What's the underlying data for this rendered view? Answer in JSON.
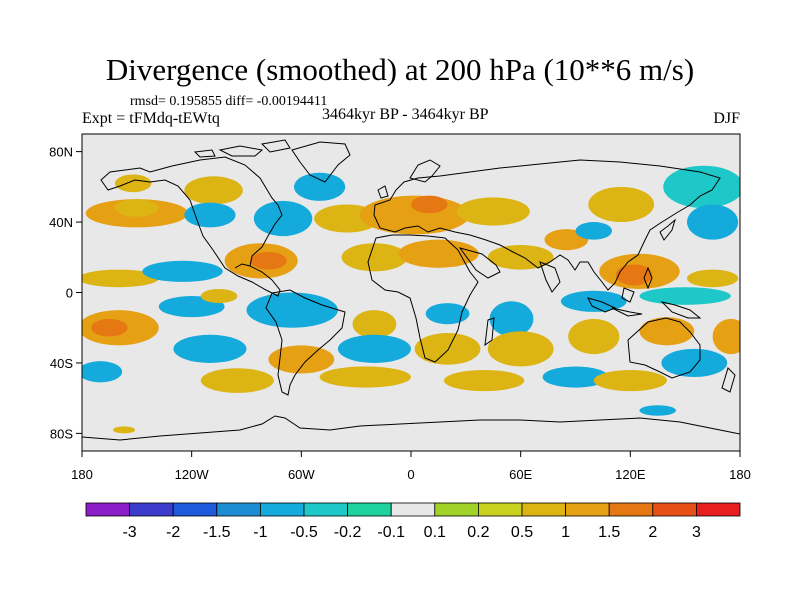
{
  "title": "Divergence (smoothed) at 200 hPa (10**6 m/s)",
  "stats": "rmsd= 0.195855 diff= -0.00194411",
  "expt": "Expt = tFMdq-tEWtq",
  "period": "3464kyr BP - 3464kyr BP",
  "season": "DJF",
  "map": {
    "lon_range": [
      -180,
      180
    ],
    "lat_range": [
      -90,
      90
    ],
    "background_color": "#e8e8e8",
    "lat_ticks": [
      {
        "value": 80,
        "label": "80N"
      },
      {
        "value": 40,
        "label": "40N"
      },
      {
        "value": 0,
        "label": "0"
      },
      {
        "value": -40,
        "label": "40S"
      },
      {
        "value": -80,
        "label": "80S"
      }
    ],
    "lon_ticks": [
      {
        "value": -180,
        "label": "180"
      },
      {
        "value": -120,
        "label": "120W"
      },
      {
        "value": -60,
        "label": "60W"
      },
      {
        "value": 0,
        "label": "0"
      },
      {
        "value": 60,
        "label": "60E"
      },
      {
        "value": 120,
        "label": "120E"
      },
      {
        "value": 180,
        "label": "180"
      }
    ],
    "anomalies": [
      {
        "lon": -150,
        "lat": 45,
        "rlon": 28,
        "rlat": 8,
        "level": 4
      },
      {
        "lon": -150,
        "lat": 48,
        "rlon": 12,
        "rlat": 5,
        "level": 3
      },
      {
        "lon": -152,
        "lat": 62,
        "rlon": 10,
        "rlat": 5,
        "level": 3
      },
      {
        "lon": -108,
        "lat": 58,
        "rlon": 16,
        "rlat": 8,
        "level": 3
      },
      {
        "lon": -110,
        "lat": 44,
        "rlon": 14,
        "rlat": 7,
        "level": -3
      },
      {
        "lon": -70,
        "lat": 42,
        "rlon": 16,
        "rlat": 10,
        "level": -3
      },
      {
        "lon": -50,
        "lat": 60,
        "rlon": 14,
        "rlat": 8,
        "level": -3
      },
      {
        "lon": -35,
        "lat": 42,
        "rlon": 18,
        "rlat": 8,
        "level": 3
      },
      {
        "lon": 2,
        "lat": 44,
        "rlon": 30,
        "rlat": 11,
        "level": 4
      },
      {
        "lon": 10,
        "lat": 50,
        "rlon": 10,
        "rlat": 5,
        "level": 5
      },
      {
        "lon": 45,
        "lat": 46,
        "rlon": 20,
        "rlat": 8,
        "level": 3
      },
      {
        "lon": 115,
        "lat": 50,
        "rlon": 18,
        "rlat": 10,
        "level": 3
      },
      {
        "lon": 160,
        "lat": 60,
        "rlon": 22,
        "rlat": 12,
        "level": -2
      },
      {
        "lon": 165,
        "lat": 40,
        "rlon": 14,
        "rlat": 10,
        "level": -3
      },
      {
        "lon": -160,
        "lat": 8,
        "rlon": 22,
        "rlat": 5,
        "level": 3
      },
      {
        "lon": -125,
        "lat": 12,
        "rlon": 22,
        "rlat": 6,
        "level": -3
      },
      {
        "lon": -82,
        "lat": 18,
        "rlon": 20,
        "rlat": 10,
        "level": 4
      },
      {
        "lon": -78,
        "lat": 18,
        "rlon": 10,
        "rlat": 5,
        "level": 5
      },
      {
        "lon": -20,
        "lat": 20,
        "rlon": 18,
        "rlat": 8,
        "level": 3
      },
      {
        "lon": 15,
        "lat": 22,
        "rlon": 22,
        "rlat": 8,
        "level": 4
      },
      {
        "lon": 60,
        "lat": 20,
        "rlon": 18,
        "rlat": 7,
        "level": 3
      },
      {
        "lon": 85,
        "lat": 30,
        "rlon": 12,
        "rlat": 6,
        "level": 4
      },
      {
        "lon": 125,
        "lat": 12,
        "rlon": 22,
        "rlat": 10,
        "level": 4
      },
      {
        "lon": 122,
        "lat": 10,
        "rlon": 10,
        "rlat": 6,
        "level": 5
      },
      {
        "lon": 100,
        "lat": 35,
        "rlon": 10,
        "rlat": 5,
        "level": -3
      },
      {
        "lon": -120,
        "lat": -8,
        "rlon": 18,
        "rlat": 6,
        "level": -3
      },
      {
        "lon": -105,
        "lat": -2,
        "rlon": 10,
        "rlat": 4,
        "level": 3
      },
      {
        "lon": -65,
        "lat": -10,
        "rlon": 25,
        "rlat": 10,
        "level": -3
      },
      {
        "lon": -20,
        "lat": -18,
        "rlon": 12,
        "rlat": 8,
        "level": 3
      },
      {
        "lon": 20,
        "lat": -12,
        "rlon": 12,
        "rlat": 6,
        "level": -3
      },
      {
        "lon": 55,
        "lat": -15,
        "rlon": 12,
        "rlat": 10,
        "level": -3
      },
      {
        "lon": 100,
        "lat": -5,
        "rlon": 18,
        "rlat": 6,
        "level": -3
      },
      {
        "lon": 150,
        "lat": -2,
        "rlon": 25,
        "rlat": 5,
        "level": -2
      },
      {
        "lon": 165,
        "lat": 8,
        "rlon": 14,
        "rlat": 5,
        "level": 3
      },
      {
        "lon": -160,
        "lat": -20,
        "rlon": 22,
        "rlat": 10,
        "level": 4
      },
      {
        "lon": -165,
        "lat": -20,
        "rlon": 10,
        "rlat": 5,
        "level": 5
      },
      {
        "lon": -110,
        "lat": -32,
        "rlon": 20,
        "rlat": 8,
        "level": -3
      },
      {
        "lon": -60,
        "lat": -38,
        "rlon": 18,
        "rlat": 8,
        "level": 4
      },
      {
        "lon": -20,
        "lat": -32,
        "rlon": 20,
        "rlat": 8,
        "level": -3
      },
      {
        "lon": 20,
        "lat": -32,
        "rlon": 18,
        "rlat": 9,
        "level": 3
      },
      {
        "lon": 60,
        "lat": -32,
        "rlon": 18,
        "rlat": 10,
        "level": 3
      },
      {
        "lon": 100,
        "lat": -25,
        "rlon": 14,
        "rlat": 10,
        "level": 3
      },
      {
        "lon": 140,
        "lat": -22,
        "rlon": 15,
        "rlat": 8,
        "level": 4
      },
      {
        "lon": 155,
        "lat": -40,
        "rlon": 18,
        "rlat": 8,
        "level": -3
      },
      {
        "lon": 175,
        "lat": -25,
        "rlon": 10,
        "rlat": 10,
        "level": 4
      },
      {
        "lon": -170,
        "lat": -45,
        "rlon": 12,
        "rlat": 6,
        "level": -3
      },
      {
        "lon": -95,
        "lat": -50,
        "rlon": 20,
        "rlat": 7,
        "level": 3
      },
      {
        "lon": -25,
        "lat": -48,
        "rlon": 25,
        "rlat": 6,
        "level": 3
      },
      {
        "lon": 40,
        "lat": -50,
        "rlon": 22,
        "rlat": 6,
        "level": 3
      },
      {
        "lon": 90,
        "lat": -48,
        "rlon": 18,
        "rlat": 6,
        "level": -3
      },
      {
        "lon": 120,
        "lat": -50,
        "rlon": 20,
        "rlat": 6,
        "level": 3
      },
      {
        "lon": 135,
        "lat": -67,
        "rlon": 10,
        "rlat": 3,
        "level": -3
      },
      {
        "lon": -157,
        "lat": -78,
        "rlon": 6,
        "rlat": 2,
        "level": 3
      }
    ]
  },
  "colorbar": {
    "colors": [
      "#8c1ec8",
      "#3c3ccc",
      "#1e5adc",
      "#1e8cd2",
      "#14aadc",
      "#1ec8c8",
      "#1ed2a0",
      "#e8e8e8",
      "#a0d228",
      "#c8d21e",
      "#dcb414",
      "#e6a014",
      "#e67814",
      "#e65014",
      "#e61e1e"
    ],
    "labels": [
      "-3",
      "-2",
      "-1.5",
      "-1",
      "-0.5",
      "-0.2",
      "-0.1",
      "0.1",
      "0.2",
      "0.5",
      "1",
      "1.5",
      "2",
      "3"
    ]
  }
}
